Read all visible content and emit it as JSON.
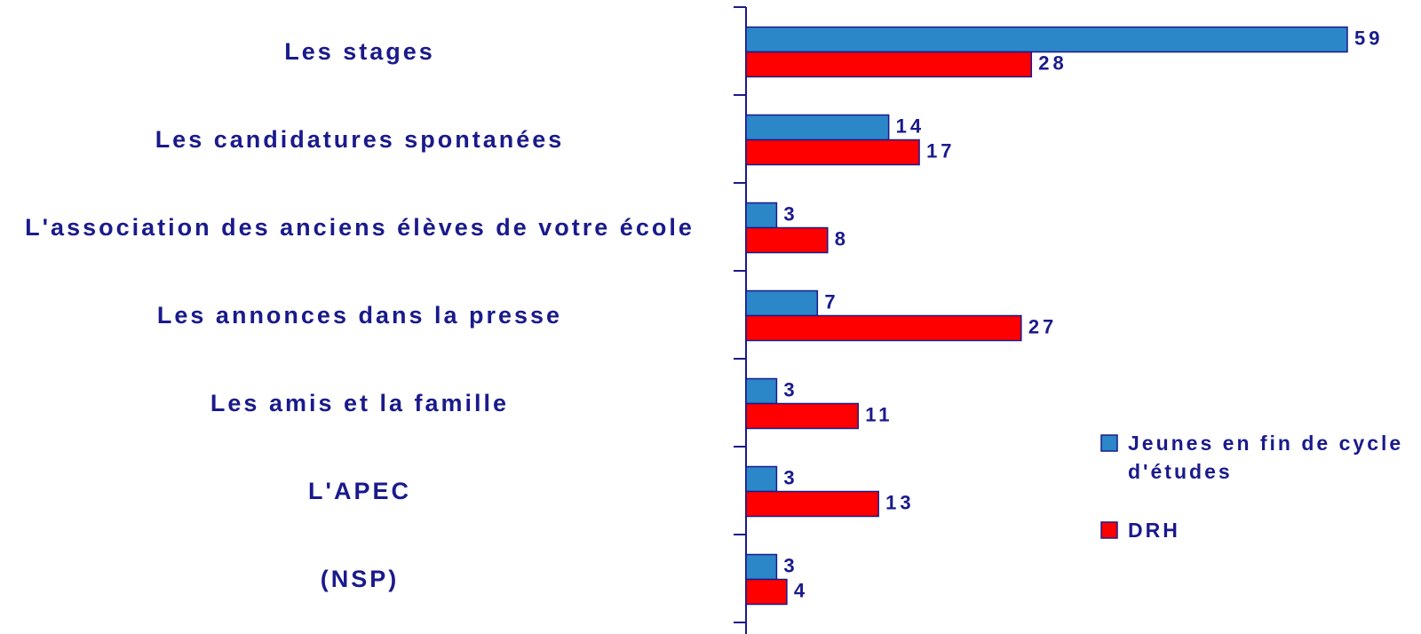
{
  "chart_data": {
    "type": "bar",
    "orientation": "horizontal",
    "categories": [
      "Les stages",
      "Les candidatures spontanées",
      "L'association des anciens élèves de votre école",
      "Les annonces dans la presse",
      "Les amis et la famille",
      "L'APEC",
      "(NSP)"
    ],
    "series": [
      {
        "name": "Jeunes en fin de cycle d'études",
        "color": "#2b87c8",
        "values": [
          59,
          14,
          3,
          7,
          3,
          3,
          3
        ]
      },
      {
        "name": "DRH",
        "color": "#ff0000",
        "values": [
          28,
          17,
          8,
          27,
          11,
          13,
          4
        ]
      }
    ],
    "legend": "right"
  }
}
